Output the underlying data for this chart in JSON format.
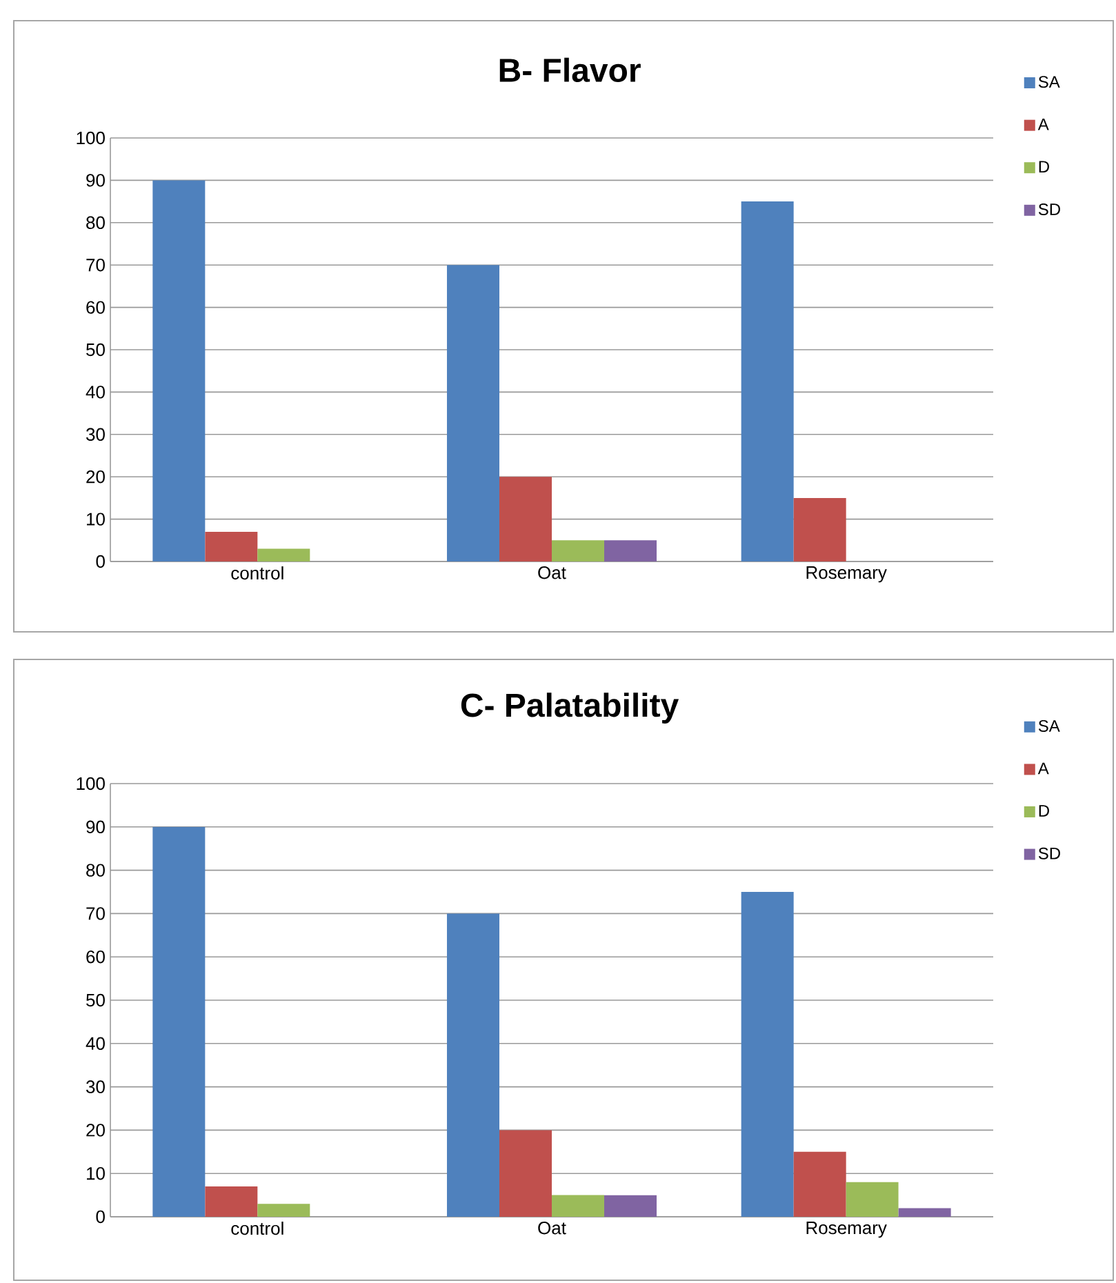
{
  "chart_data": [
    {
      "type": "bar",
      "title": "B- Flavor",
      "categories": [
        "control",
        "Oat",
        "Rosemary"
      ],
      "series": [
        {
          "name": "SA",
          "color": "#4f81bd",
          "values": [
            90,
            70,
            85
          ]
        },
        {
          "name": "A",
          "color": "#c0504d",
          "values": [
            7,
            20,
            15
          ]
        },
        {
          "name": "D",
          "color": "#9bbb59",
          "values": [
            3,
            5,
            0
          ]
        },
        {
          "name": "SD",
          "color": "#8064a2",
          "values": [
            0,
            5,
            0
          ]
        }
      ],
      "ylim": [
        0,
        100
      ],
      "yticks": [
        0,
        10,
        20,
        30,
        40,
        50,
        60,
        70,
        80,
        90,
        100
      ],
      "grid": "y",
      "legend": "top right"
    },
    {
      "type": "bar",
      "title": "C- Palatability",
      "categories": [
        "control",
        "Oat",
        "Rosemary"
      ],
      "series": [
        {
          "name": "SA",
          "color": "#4f81bd",
          "values": [
            90,
            70,
            75
          ]
        },
        {
          "name": "A",
          "color": "#c0504d",
          "values": [
            7,
            20,
            15
          ]
        },
        {
          "name": "D",
          "color": "#9bbb59",
          "values": [
            3,
            5,
            8
          ]
        },
        {
          "name": "SD",
          "color": "#8064a2",
          "values": [
            0,
            5,
            2
          ]
        }
      ],
      "ylim": [
        0,
        100
      ],
      "yticks": [
        0,
        10,
        20,
        30,
        40,
        50,
        60,
        70,
        80,
        90,
        100
      ],
      "grid": "y",
      "legend": "top right"
    }
  ]
}
